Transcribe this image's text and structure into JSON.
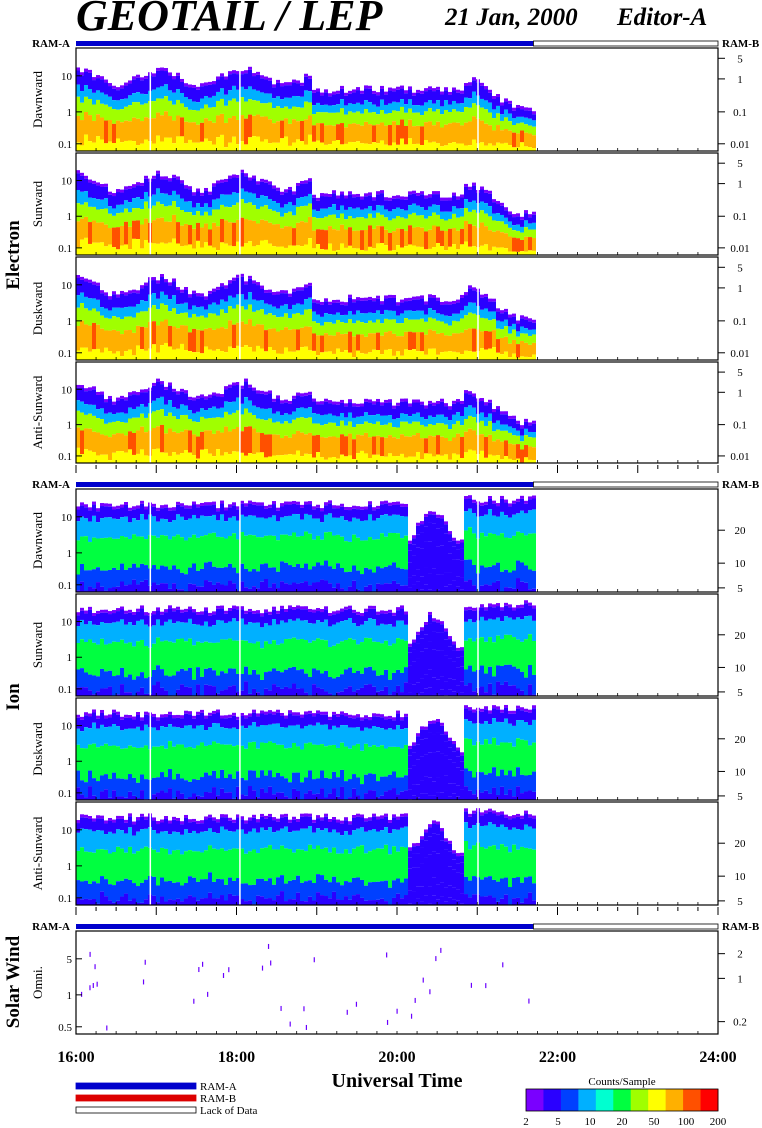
{
  "header": {
    "title": "GEOTAIL / LEP",
    "date": "21 Jan, 2000",
    "editor": "Editor-A"
  },
  "chart_data": {
    "type": "heatmap",
    "x_axis": {
      "label": "Universal Time",
      "range": [
        "16:00",
        "24:00"
      ],
      "tick_labels": [
        "16:00",
        "18:00",
        "20:00",
        "22:00",
        "24:00"
      ]
    },
    "data_end_time": "21:42",
    "gaps": [
      "16:55",
      "18:02",
      "21:00"
    ],
    "ram_bar": {
      "left_label": "RAM-A",
      "right_label": "RAM-B"
    },
    "groups": [
      {
        "name": "Electron",
        "left_ticks": [
          "10",
          "1",
          "0.1"
        ],
        "right_ticks": [
          "5",
          "1",
          "0.1",
          "0.01"
        ],
        "panels": [
          "Dawnward",
          "Sunward",
          "Duskward",
          "Anti-Sunward"
        ]
      },
      {
        "name": "Ion",
        "left_ticks": [
          "10",
          "1",
          "0.1"
        ],
        "right_ticks": [
          "20",
          "10",
          "5"
        ],
        "panels": [
          "Dawnward",
          "Sunward",
          "Duskward",
          "Anti-Sunward"
        ]
      },
      {
        "name": "Solar Wind",
        "left_ticks": [
          "5",
          "1",
          "0.5"
        ],
        "right_ticks": [
          "2",
          "1",
          "0.2"
        ],
        "panels": [
          "Omni."
        ]
      }
    ],
    "legend": [
      {
        "label": "RAM-A",
        "color": "#0000cc"
      },
      {
        "label": "RAM-B",
        "color": "#dd0000"
      },
      {
        "label": "Lack of Data",
        "color": "#ffffff"
      }
    ],
    "colorbar": {
      "title": "Counts/Sample",
      "tick_labels": [
        "2",
        "5",
        "10",
        "20",
        "50",
        "100",
        "200"
      ],
      "colors": [
        "#7a00ff",
        "#2a00ff",
        "#0040ff",
        "#00b0ff",
        "#00ffd0",
        "#00ff40",
        "#a0ff00",
        "#ffff00",
        "#ffb000",
        "#ff5000",
        "#ff0000"
      ]
    }
  }
}
